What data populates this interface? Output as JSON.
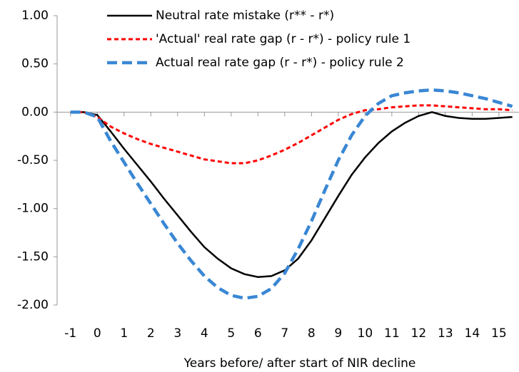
{
  "chart_data": {
    "type": "line",
    "x_label": "Years before/ after start of NIR decline",
    "x": [
      -1,
      -0.5,
      0,
      0.5,
      1,
      1.5,
      2,
      2.5,
      3,
      3.5,
      4,
      4.5,
      5,
      5.5,
      6,
      6.5,
      7,
      7.5,
      8,
      8.5,
      9,
      9.5,
      10,
      10.5,
      11,
      11.5,
      12,
      12.5,
      13,
      13.5,
      14,
      14.5,
      15,
      15.5
    ],
    "series": [
      {
        "name": "Neutral rate mistake (r** - r*)",
        "color": "#000000",
        "dash": "solid",
        "values": [
          0,
          0,
          -0.03,
          -0.2,
          -0.38,
          -0.55,
          -0.72,
          -0.9,
          -1.07,
          -1.24,
          -1.4,
          -1.52,
          -1.62,
          -1.68,
          -1.71,
          -1.7,
          -1.64,
          -1.52,
          -1.33,
          -1.1,
          -0.87,
          -0.65,
          -0.47,
          -0.32,
          -0.2,
          -0.11,
          -0.04,
          0,
          -0.04,
          -0.06,
          -0.07,
          -0.07,
          -0.06,
          -0.05
        ]
      },
      {
        "name": "'Actual' real rate gap (r - r*) - policy rule 1",
        "color": "#ff0000",
        "dash": "dotted",
        "values": [
          0,
          0,
          -0.05,
          -0.15,
          -0.22,
          -0.28,
          -0.33,
          -0.37,
          -0.41,
          -0.45,
          -0.49,
          -0.51,
          -0.53,
          -0.53,
          -0.5,
          -0.45,
          -0.39,
          -0.32,
          -0.24,
          -0.16,
          -0.08,
          -0.02,
          0.02,
          0.03,
          0.05,
          0.06,
          0.07,
          0.07,
          0.06,
          0.05,
          0.04,
          0.03,
          0.03,
          0.02
        ]
      },
      {
        "name": "Actual real rate gap (r - r*) - policy rule 2",
        "color": "#3a87d4",
        "dash": "dashed",
        "values": [
          0,
          0,
          -0.05,
          -0.3,
          -0.52,
          -0.74,
          -0.95,
          -1.16,
          -1.36,
          -1.54,
          -1.7,
          -1.82,
          -1.9,
          -1.93,
          -1.91,
          -1.83,
          -1.67,
          -1.42,
          -1.13,
          -0.81,
          -0.5,
          -0.24,
          -0.04,
          0.09,
          0.17,
          0.2,
          0.22,
          0.23,
          0.22,
          0.2,
          0.17,
          0.14,
          0.1,
          0.06
        ]
      }
    ],
    "xlim": [
      -1.5,
      15.75
    ],
    "xticks": [
      -1,
      0,
      1,
      2,
      3,
      4,
      5,
      6,
      7,
      8,
      9,
      10,
      11,
      12,
      13,
      14,
      15
    ],
    "ylim": [
      -2,
      1
    ],
    "yticks": [
      {
        "value": -2,
        "label": "-2.00"
      },
      {
        "value": -1.5,
        "label": "-1.50"
      },
      {
        "value": -1,
        "label": "-1.00"
      },
      {
        "value": -0.5,
        "label": "-0.50"
      },
      {
        "value": 0,
        "label": "0.00"
      },
      {
        "value": 0.5,
        "label": "0.50"
      },
      {
        "value": 1,
        "label": "1.00"
      }
    ],
    "grid": false
  }
}
